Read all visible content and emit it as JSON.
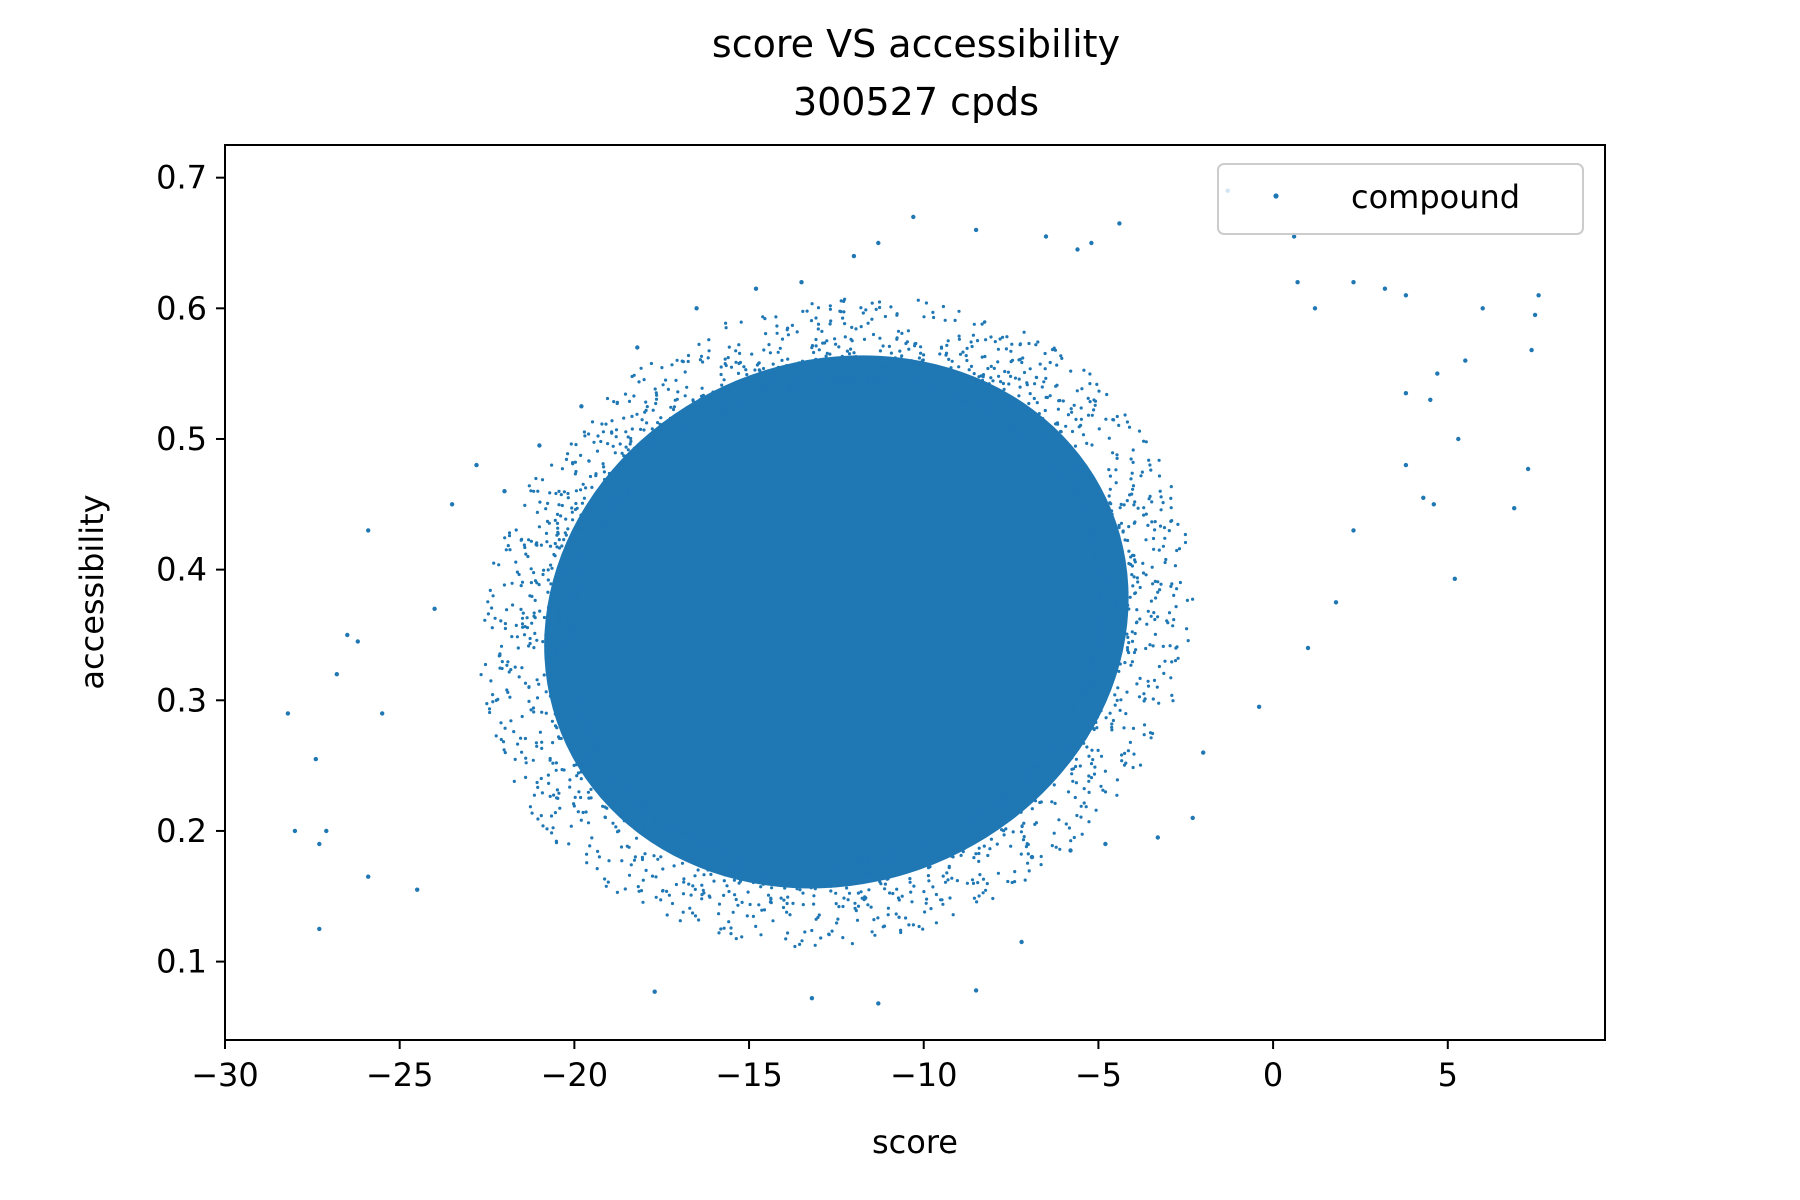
{
  "chart_data": {
    "type": "scatter",
    "title": "score VS accessibility",
    "subtitle": "300527 cpds",
    "xlabel": "score",
    "ylabel": "accessibility",
    "xlim": [
      -30,
      9.5
    ],
    "ylim": [
      0.04,
      0.725
    ],
    "x_ticks": [
      -30,
      -25,
      -20,
      -15,
      -10,
      -5,
      0,
      5
    ],
    "x_tick_labels": [
      "−30",
      "−25",
      "−20",
      "−15",
      "−10",
      "−5",
      "0",
      "5"
    ],
    "y_ticks": [
      0.1,
      0.2,
      0.3,
      0.4,
      0.5,
      0.6,
      0.7
    ],
    "y_tick_labels": [
      "0.1",
      "0.2",
      "0.3",
      "0.4",
      "0.5",
      "0.6",
      "0.7"
    ],
    "grid": false,
    "legend": {
      "placement": "top-right",
      "entries": [
        "compound"
      ]
    },
    "series": [
      {
        "name": "compound",
        "color": "#1f77b4",
        "marker": "point",
        "count": 300527,
        "approximate_distribution": {
          "center": [
            -12.5,
            0.36
          ],
          "core_extent_x": [
            -20,
            -3
          ],
          "core_extent_y": [
            0.15,
            0.58
          ]
        },
        "points": [
          [
            -28.2,
            0.29
          ],
          [
            -28.0,
            0.2
          ],
          [
            -27.4,
            0.255
          ],
          [
            -27.3,
            0.19
          ],
          [
            -27.3,
            0.125
          ],
          [
            -27.1,
            0.2
          ],
          [
            -26.8,
            0.32
          ],
          [
            -26.5,
            0.35
          ],
          [
            -26.2,
            0.345
          ],
          [
            -25.9,
            0.43
          ],
          [
            -25.9,
            0.165
          ],
          [
            -25.5,
            0.29
          ],
          [
            -24.5,
            0.155
          ],
          [
            -24.0,
            0.37
          ],
          [
            -23.5,
            0.45
          ],
          [
            -22.8,
            0.48
          ],
          [
            -22.0,
            0.46
          ],
          [
            -21.0,
            0.495
          ],
          [
            -19.8,
            0.525
          ],
          [
            -18.2,
            0.57
          ],
          [
            -16.5,
            0.6
          ],
          [
            -14.8,
            0.615
          ],
          [
            -13.5,
            0.62
          ],
          [
            -12.0,
            0.64
          ],
          [
            -11.3,
            0.65
          ],
          [
            -10.3,
            0.67
          ],
          [
            -8.5,
            0.66
          ],
          [
            -6.5,
            0.655
          ],
          [
            -5.6,
            0.645
          ],
          [
            -5.2,
            0.65
          ],
          [
            -4.4,
            0.665
          ],
          [
            -1.3,
            0.69
          ],
          [
            0.6,
            0.655
          ],
          [
            0.7,
            0.62
          ],
          [
            1.2,
            0.6
          ],
          [
            2.3,
            0.62
          ],
          [
            3.2,
            0.615
          ],
          [
            3.8,
            0.61
          ],
          [
            6.0,
            0.6
          ],
          [
            7.6,
            0.61
          ],
          [
            7.5,
            0.595
          ],
          [
            7.4,
            0.568
          ],
          [
            5.5,
            0.56
          ],
          [
            4.7,
            0.55
          ],
          [
            3.8,
            0.535
          ],
          [
            4.5,
            0.53
          ],
          [
            5.3,
            0.5
          ],
          [
            3.8,
            0.48
          ],
          [
            4.3,
            0.455
          ],
          [
            4.6,
            0.45
          ],
          [
            7.3,
            0.477
          ],
          [
            6.9,
            0.447
          ],
          [
            5.2,
            0.393
          ],
          [
            2.3,
            0.43
          ],
          [
            1.8,
            0.375
          ],
          [
            1.0,
            0.34
          ],
          [
            -0.4,
            0.295
          ],
          [
            -2.0,
            0.26
          ],
          [
            -2.3,
            0.21
          ],
          [
            -3.3,
            0.195
          ],
          [
            -4.8,
            0.19
          ],
          [
            -5.8,
            0.185
          ],
          [
            -6.9,
            0.18
          ],
          [
            -7.2,
            0.115
          ],
          [
            -8.5,
            0.078
          ],
          [
            -11.3,
            0.068
          ],
          [
            -13.2,
            0.072
          ],
          [
            -17.7,
            0.077
          ]
        ]
      }
    ]
  }
}
